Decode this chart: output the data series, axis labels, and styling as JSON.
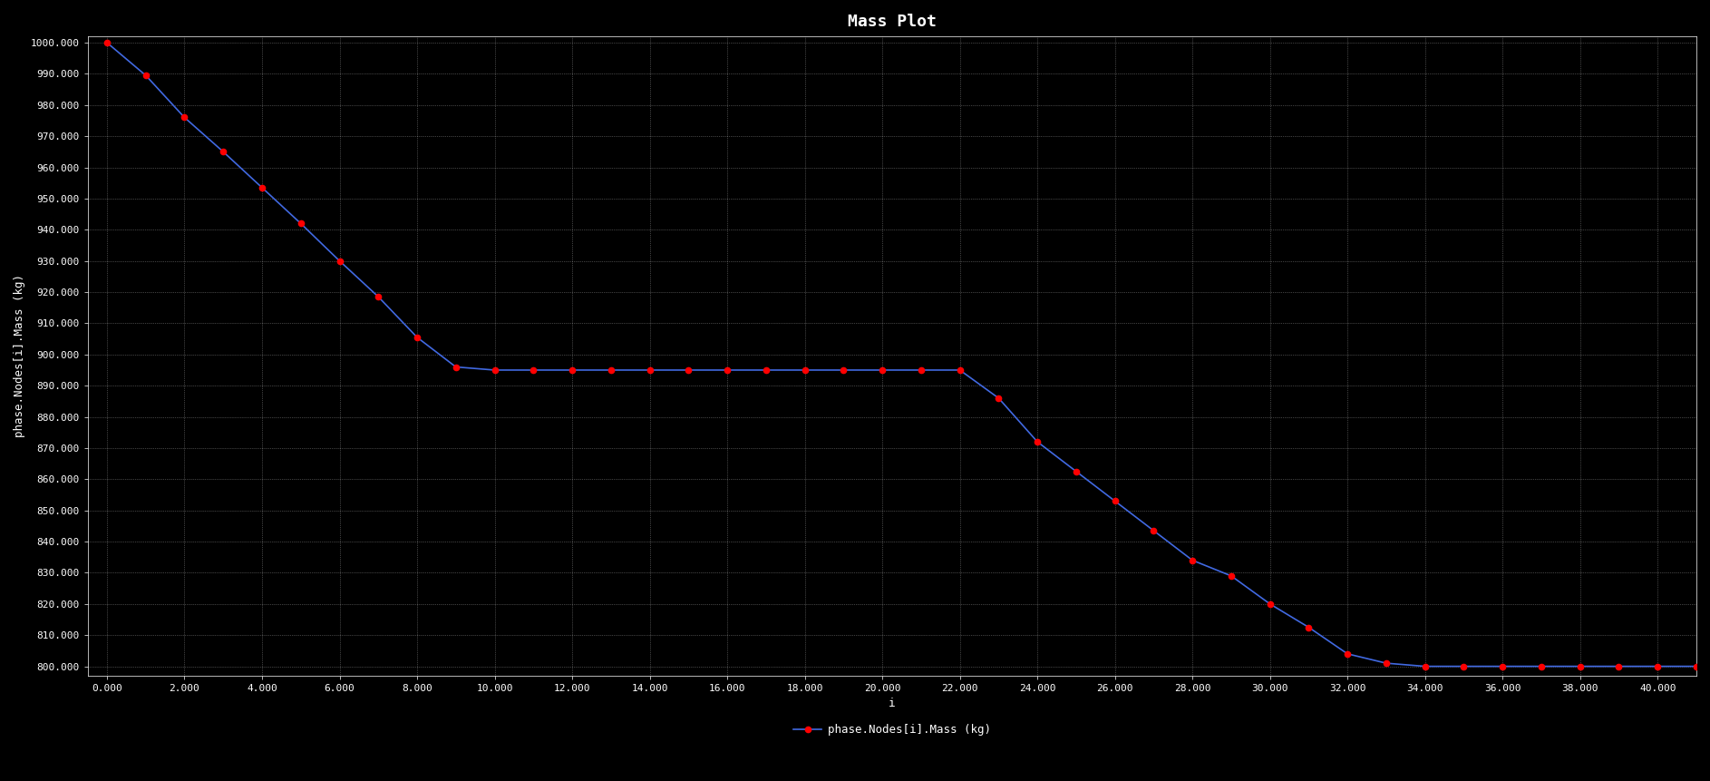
{
  "title": "Mass Plot",
  "xlabel": "i",
  "ylabel": "phase.Nodes[i].Mass (kg)",
  "background_color": "#000000",
  "axes_color": "#000000",
  "line_color": "#4169E1",
  "marker_color": "#FF0000",
  "text_color": "#FFFFFF",
  "grid_color": "#FFFFFF",
  "xlim": [
    -0.5,
    41.0
  ],
  "ylim": [
    797.0,
    1002.0
  ],
  "xticks": [
    0.0,
    2.0,
    4.0,
    6.0,
    8.0,
    10.0,
    12.0,
    14.0,
    16.0,
    18.0,
    20.0,
    22.0,
    24.0,
    26.0,
    28.0,
    30.0,
    32.0,
    34.0,
    36.0,
    38.0,
    40.0
  ],
  "yticks": [
    800.0,
    810.0,
    820.0,
    830.0,
    840.0,
    850.0,
    860.0,
    870.0,
    880.0,
    890.0,
    900.0,
    910.0,
    920.0,
    930.0,
    940.0,
    950.0,
    960.0,
    970.0,
    980.0,
    990.0,
    1000.0
  ],
  "x_data": [
    0,
    1,
    2,
    3,
    4,
    5,
    6,
    7,
    8,
    9,
    10,
    11,
    12,
    13,
    14,
    15,
    16,
    17,
    18,
    19,
    20,
    21,
    22,
    23,
    24,
    25,
    26,
    27,
    28,
    29,
    30,
    31,
    32,
    33,
    34,
    35,
    36,
    37,
    38,
    39,
    40,
    41
  ],
  "y_data": [
    1000.0,
    989.5,
    976.0,
    965.0,
    953.5,
    942.0,
    930.0,
    918.5,
    905.5,
    896.0,
    895.0,
    895.0,
    895.0,
    895.0,
    895.0,
    895.0,
    895.0,
    895.0,
    895.0,
    895.0,
    895.0,
    895.0,
    895.0,
    886.0,
    872.0,
    862.5,
    853.0,
    843.5,
    834.0,
    829.0,
    820.0,
    812.5,
    804.0,
    801.0,
    800.0,
    800.0,
    800.0,
    800.0,
    800.0,
    800.0,
    800.0,
    800.0
  ],
  "legend_label": "phase.Nodes[i].Mass (kg)",
  "title_fontsize": 13,
  "label_fontsize": 9,
  "tick_fontsize": 8,
  "font_family": "monospace"
}
